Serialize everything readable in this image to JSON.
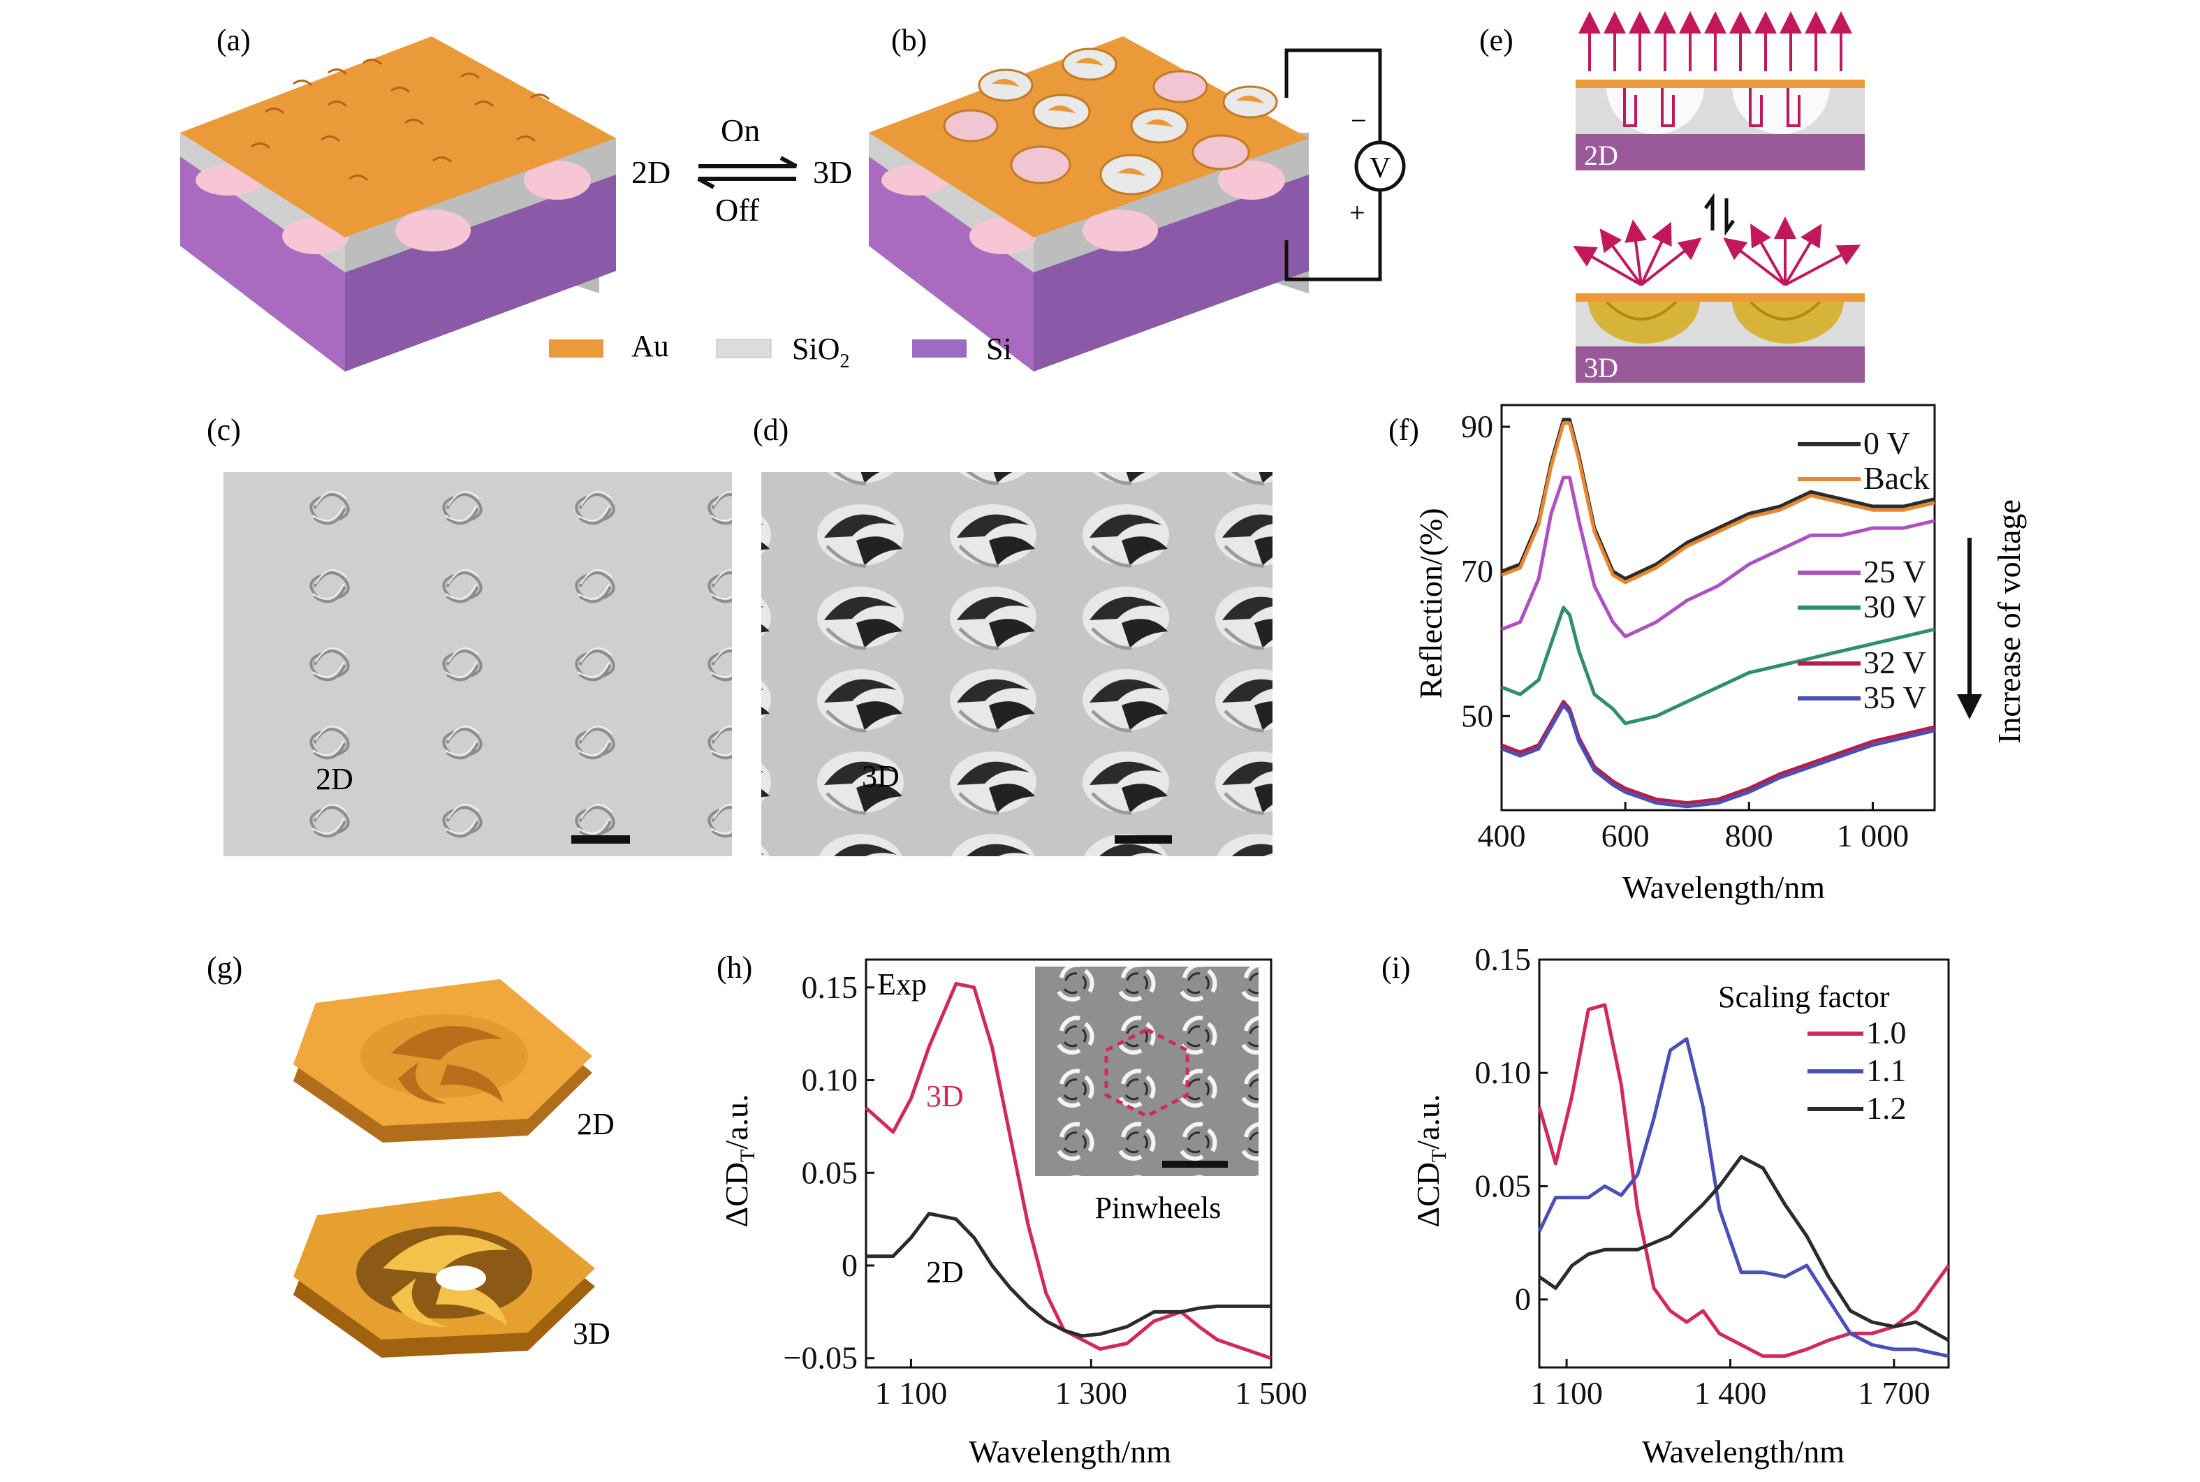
{
  "panel_labels": {
    "a": "(a)",
    "b": "(b)",
    "c": "(c)",
    "d": "(d)",
    "e": "(e)",
    "f": "(f)",
    "g": "(g)",
    "h": "(h)",
    "i": "(i)"
  },
  "panel_a": {
    "label_2d": "2D"
  },
  "switch": {
    "on": "On",
    "off": "Off"
  },
  "panel_b": {
    "label_3d": "3D",
    "voltmeter": "V",
    "minus": "−",
    "plus": "+"
  },
  "material_legend": {
    "au": "Au",
    "sio2": "SiO",
    "sio2_sub": "2",
    "si": "Si",
    "colors": {
      "au": "#eb9a3a",
      "sio2": "#dcdcdc",
      "si": "#9a6cc2"
    }
  },
  "panel_c": {
    "label": "2D"
  },
  "panel_d": {
    "label": "3D"
  },
  "panel_e": {
    "top_label": "2D",
    "bottom_label": "3D",
    "arrow_color": "#c2185b"
  },
  "panel_f": {
    "ylabel": "Reflection/(%)",
    "xlabel": "Wavelength/nm",
    "side_note": "Increase of voltage"
  },
  "panel_g": {
    "label_2d": "2D",
    "label_3d": "3D"
  },
  "panel_h": {
    "ylabel_main": "ΔCD",
    "ylabel_sub": "T",
    "ylabel_tail": "/a.u.",
    "xlabel": "Wavelength/nm",
    "exp_label": "Exp",
    "curve_3d": "3D",
    "curve_2d": "2D",
    "inset_caption": "Pinwheels"
  },
  "panel_i": {
    "ylabel_main": "ΔCD",
    "ylabel_sub": "T",
    "ylabel_tail": "/a.u.",
    "xlabel": "Wavelength/nm",
    "legend_title": "Scaling factor"
  },
  "chart_data": [
    {
      "id": "f",
      "type": "line",
      "xlabel": "Wavelength/nm",
      "ylabel": "Reflection/(%)",
      "xlim": [
        400,
        1100
      ],
      "ylim": [
        37,
        93
      ],
      "xticks": [
        400,
        600,
        800,
        1000
      ],
      "xtick_labels": [
        "400",
        "600",
        "800",
        "1 000"
      ],
      "yticks": [
        50,
        70,
        90
      ],
      "ytick_labels": [
        "50",
        "70",
        "90"
      ],
      "x": [
        400,
        430,
        460,
        480,
        500,
        510,
        525,
        550,
        580,
        600,
        650,
        700,
        750,
        800,
        850,
        900,
        950,
        1000,
        1050,
        1100
      ],
      "series": [
        {
          "name": "0 V",
          "color": "#2b2b2b",
          "values": [
            70,
            71,
            77,
            85,
            91,
            91,
            86,
            76,
            70,
            69,
            71,
            74,
            76,
            78,
            79,
            81,
            80,
            79,
            79,
            80
          ]
        },
        {
          "name": "Back",
          "color": "#e8872e",
          "values": [
            69.5,
            70.5,
            76.5,
            84.5,
            90.5,
            90.5,
            85.5,
            75.5,
            69.5,
            68.5,
            70.5,
            73.5,
            75.5,
            77.5,
            78.5,
            80.5,
            79.5,
            78.5,
            78.5,
            79.5
          ]
        },
        {
          "name": "25 V",
          "color": "#b04fc4",
          "values": [
            62,
            63,
            69,
            78,
            83,
            83,
            77,
            68,
            63,
            61,
            63,
            66,
            68,
            71,
            73,
            75,
            75,
            76,
            76,
            77
          ]
        },
        {
          "name": "30 V",
          "color": "#2f8f6a",
          "values": [
            54,
            53,
            55,
            60,
            65,
            64,
            59,
            53,
            51,
            49,
            50,
            52,
            54,
            56,
            57,
            58,
            59,
            60,
            61,
            62
          ]
        },
        {
          "name": "32 V",
          "color": "#b0204a",
          "values": [
            46,
            45,
            46,
            49,
            52,
            51,
            47,
            43,
            41,
            40,
            38.5,
            38,
            38.5,
            40,
            42,
            43.5,
            45,
            46.5,
            47.5,
            48.5
          ]
        },
        {
          "name": "35 V",
          "color": "#4a4fb8",
          "values": [
            45.5,
            44.5,
            45.5,
            48.5,
            51.5,
            50.5,
            46.5,
            42.5,
            40.5,
            39.5,
            38,
            37.5,
            38,
            39.5,
            41.5,
            43,
            44.5,
            46,
            47,
            48
          ]
        }
      ]
    },
    {
      "id": "h",
      "type": "line",
      "xlabel": "Wavelength/nm",
      "ylabel": "ΔCDT/a.u.",
      "xlim": [
        1050,
        1500
      ],
      "ylim": [
        -0.055,
        0.165
      ],
      "xticks": [
        1100,
        1300,
        1500
      ],
      "xtick_labels": [
        "1 100",
        "1 300",
        "1 500"
      ],
      "yticks": [
        -0.05,
        0,
        0.05,
        0.1,
        0.15
      ],
      "ytick_labels": [
        "−0.05",
        "0",
        "0.05",
        "0.10",
        "0.15"
      ],
      "x": [
        1050,
        1080,
        1100,
        1120,
        1150,
        1170,
        1190,
        1210,
        1230,
        1250,
        1270,
        1290,
        1310,
        1340,
        1370,
        1400,
        1420,
        1440,
        1470,
        1500
      ],
      "series": [
        {
          "name": "3D",
          "color": "#d12a5a",
          "values": [
            0.085,
            0.072,
            0.09,
            0.118,
            0.152,
            0.15,
            0.118,
            0.07,
            0.022,
            -0.015,
            -0.035,
            -0.04,
            -0.045,
            -0.042,
            -0.03,
            -0.025,
            -0.033,
            -0.04,
            -0.045,
            -0.05
          ]
        },
        {
          "name": "2D",
          "color": "#2b2b2b",
          "values": [
            0.005,
            0.005,
            0.015,
            0.028,
            0.025,
            0.015,
            0.0,
            -0.012,
            -0.022,
            -0.03,
            -0.035,
            -0.038,
            -0.037,
            -0.033,
            -0.025,
            -0.025,
            -0.023,
            -0.022,
            -0.022,
            -0.022
          ]
        }
      ]
    },
    {
      "id": "i",
      "type": "line",
      "xlabel": "Wavelength/nm",
      "ylabel": "ΔCDT/a.u.",
      "xlim": [
        1050,
        1800
      ],
      "ylim": [
        -0.03,
        0.15
      ],
      "xticks": [
        1100,
        1400,
        1700
      ],
      "xtick_labels": [
        "1 100",
        "1 400",
        "1 700"
      ],
      "yticks": [
        0,
        0.05,
        0.1,
        0.15
      ],
      "ytick_labels": [
        "0",
        "0.05",
        "0.10",
        "0.15"
      ],
      "x": [
        1050,
        1080,
        1110,
        1140,
        1170,
        1200,
        1230,
        1260,
        1290,
        1320,
        1350,
        1380,
        1420,
        1460,
        1500,
        1540,
        1580,
        1620,
        1660,
        1700,
        1740,
        1800
      ],
      "series": [
        {
          "name": "1.0",
          "color": "#d12a5a",
          "values": [
            0.085,
            0.06,
            0.09,
            0.128,
            0.13,
            0.095,
            0.04,
            0.005,
            -0.005,
            -0.01,
            -0.005,
            -0.015,
            -0.02,
            -0.025,
            -0.025,
            -0.022,
            -0.018,
            -0.015,
            -0.015,
            -0.012,
            -0.005,
            0.015
          ]
        },
        {
          "name": "1.1",
          "color": "#4a4fb8",
          "values": [
            0.03,
            0.045,
            0.045,
            0.045,
            0.05,
            0.046,
            0.055,
            0.08,
            0.11,
            0.115,
            0.085,
            0.04,
            0.012,
            0.012,
            0.01,
            0.015,
            0.0,
            -0.015,
            -0.02,
            -0.022,
            -0.022,
            -0.025
          ]
        },
        {
          "name": "1.2",
          "color": "#2b2b2b",
          "values": [
            0.01,
            0.005,
            0.015,
            0.02,
            0.022,
            0.022,
            0.022,
            0.025,
            0.028,
            0.035,
            0.042,
            0.05,
            0.063,
            0.058,
            0.042,
            0.028,
            0.01,
            -0.005,
            -0.01,
            -0.012,
            -0.01,
            -0.018
          ]
        }
      ]
    }
  ]
}
